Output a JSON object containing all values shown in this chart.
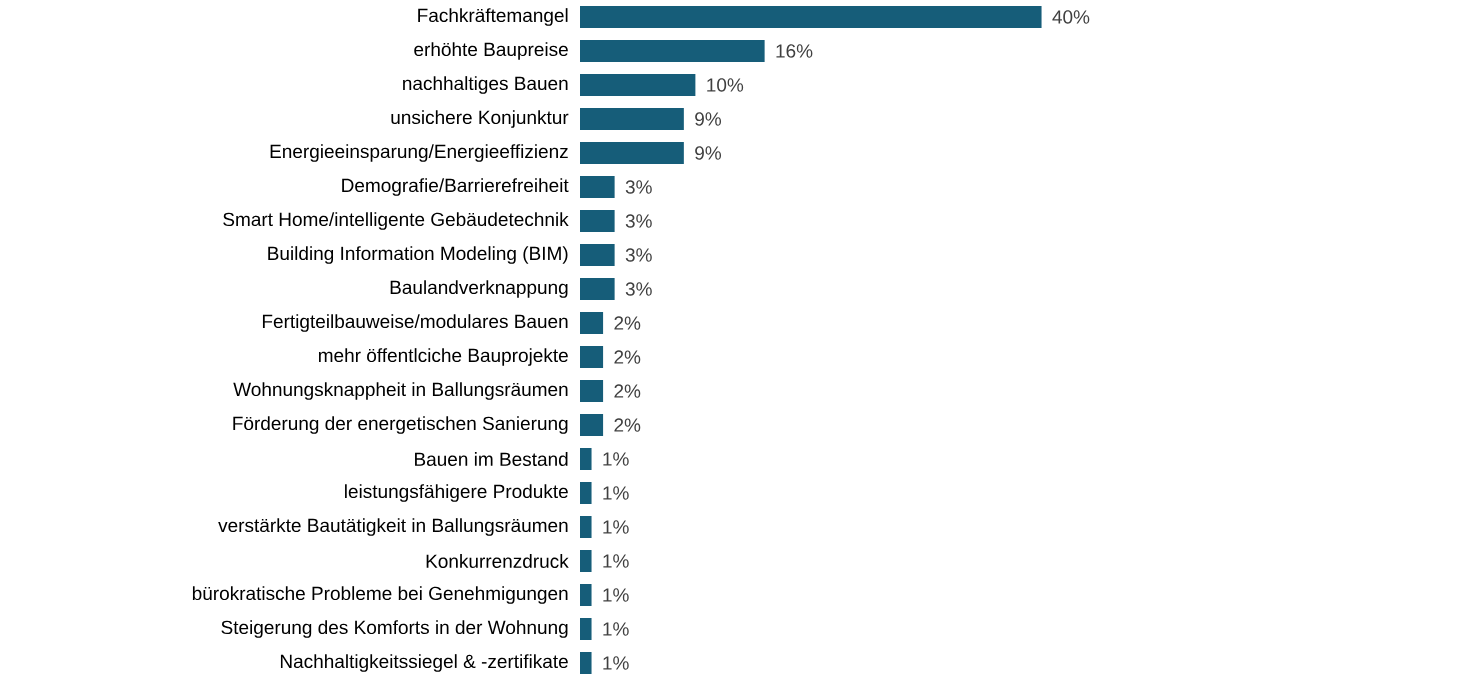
{
  "chart_data": {
    "type": "bar",
    "orientation": "horizontal",
    "color": "#165d79",
    "categories": [
      "Fachkräftemangel",
      "erhöhte Baupreise",
      "nachhaltiges Bauen",
      "unsichere Konjunktur",
      "Energieeinsparung/Energieeffizienz",
      "Demografie/Barrierefreiheit",
      "Smart Home/intelligente Gebäudetechnik",
      "Building Information Modeling (BIM)",
      "Baulandverknappung",
      "Fertigteilbauweise/modulares Bauen",
      "mehr öffentlciche Bauprojekte",
      "Wohnungsknappheit in Ballungsräumen",
      "Förderung der energetischen Sanierung",
      "Bauen im Bestand",
      "leistungsfähigere Produkte",
      "verstärkte Bautätigkeit in Ballungsräumen",
      "Konkurrenzdruck",
      "bürokratische Probleme bei Genehmigungen",
      "Steigerung des Komforts in der Wohnung",
      "Nachhaltigkeitssiegel & -zertifikate"
    ],
    "values": [
      40,
      16,
      10,
      9,
      9,
      3,
      3,
      3,
      3,
      2,
      2,
      2,
      2,
      1,
      1,
      1,
      1,
      1,
      1,
      1
    ],
    "value_labels": [
      "40%",
      "16%",
      "10%",
      "9%",
      "9%",
      "3%",
      "3%",
      "3%",
      "3%",
      "2%",
      "2%",
      "2%",
      "2%",
      "1%",
      "1%",
      "1%",
      "1%",
      "1%",
      "1%",
      "1%"
    ]
  }
}
